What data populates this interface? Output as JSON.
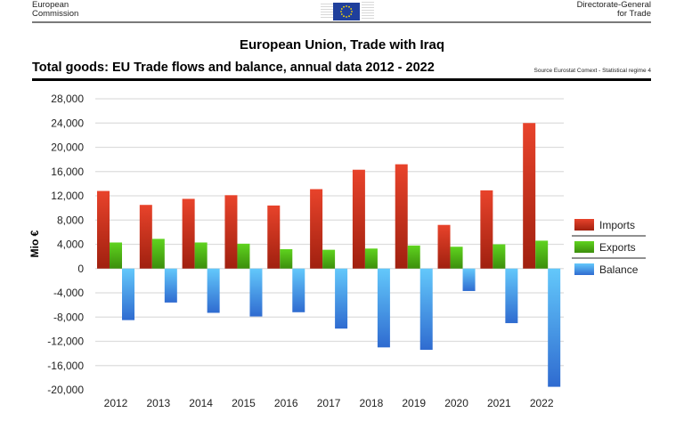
{
  "header": {
    "org_line1": "European",
    "org_line2": "Commission",
    "dg_line1": "Directorate-General",
    "dg_line2": "for Trade",
    "logo": "eu-flag-icon"
  },
  "title": "European Union, Trade with Iraq",
  "subtitle": "Total goods: EU Trade flows and balance, annual data 2012 - 2022",
  "source": "Source Eurostat Comext  - Statistical regime 4",
  "colors": {
    "imports": "#e8432b",
    "imports_dark": "#a0200f",
    "exports": "#5fd31f",
    "exports_dark": "#3c8e0c",
    "balance": "#63c8fb",
    "balance_dark": "#2f6bd0",
    "grid": "#dddddd"
  },
  "chart_data": {
    "type": "bar",
    "title": "Total goods: EU Trade flows and balance, annual data 2012 - 2022",
    "xlabel": "",
    "ylabel": "Mio €",
    "ylim": [
      -20000,
      28000
    ],
    "yticks": [
      28000,
      24000,
      20000,
      16000,
      12000,
      8000,
      4000,
      0,
      -4000,
      -8000,
      -12000,
      -16000,
      -20000
    ],
    "ytick_labels": [
      "28,000",
      "24,000",
      "20,000",
      "16,000",
      "12,000",
      "8,000",
      "4,000",
      "0",
      "-4,000",
      "-8,000",
      "-12,000",
      "-16,000",
      "-20,000"
    ],
    "grid": true,
    "legend_position": "right",
    "categories": [
      "2012",
      "2013",
      "2014",
      "2015",
      "2016",
      "2017",
      "2018",
      "2019",
      "2020",
      "2021",
      "2022"
    ],
    "series": [
      {
        "name": "Imports",
        "values": [
          12800,
          10500,
          11500,
          12100,
          10400,
          13100,
          16300,
          17200,
          7200,
          12900,
          24000
        ]
      },
      {
        "name": "Exports",
        "values": [
          4300,
          4900,
          4300,
          4100,
          3200,
          3100,
          3300,
          3800,
          3600,
          4000,
          4600
        ]
      },
      {
        "name": "Balance",
        "values": [
          -8500,
          -5600,
          -7300,
          -7900,
          -7200,
          -9900,
          -13000,
          -13400,
          -3700,
          -9000,
          -19500
        ]
      }
    ]
  }
}
